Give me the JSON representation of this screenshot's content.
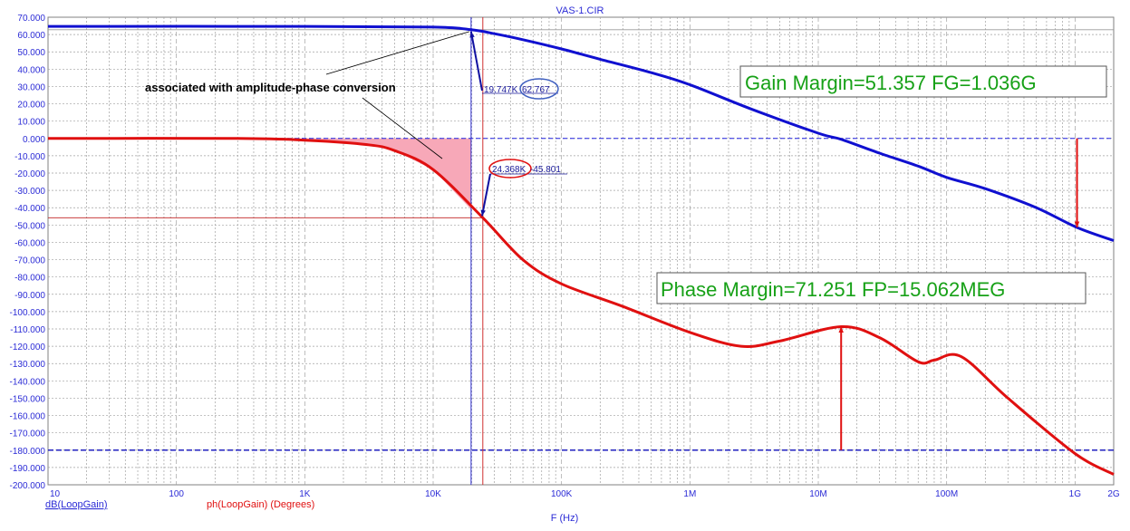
{
  "chart_data": {
    "type": "line",
    "title": "VAS-1.CIR",
    "xlabel": "F (Hz)",
    "x_scale": "log",
    "xlim": [
      10,
      2000000000
    ],
    "ylim": [
      -200,
      70
    ],
    "grid": true,
    "x_tick_labels": [
      "10",
      "100",
      "1K",
      "10K",
      "100K",
      "1M",
      "10M",
      "100M",
      "1G",
      "2G"
    ],
    "y_tick_labels": [
      "70.000",
      "60.000",
      "50.000",
      "40.000",
      "30.000",
      "20.000",
      "10.000",
      "0.000",
      "-10.000",
      "-20.000",
      "-30.000",
      "-40.000",
      "-50.000",
      "-60.000",
      "-70.000",
      "-80.000",
      "-90.000",
      "-100.000",
      "-110.000",
      "-120.000",
      "-130.000",
      "-140.000",
      "-150.000",
      "-160.000",
      "-170.000",
      "-180.000",
      "-190.000",
      "-200.000"
    ],
    "series": [
      {
        "name": "dB(LoopGain)",
        "color": "#1010d0",
        "x": [
          10,
          1000,
          10000,
          19747,
          30000,
          50000,
          100000,
          200000,
          500000,
          1000000,
          3000000,
          10000000,
          15000000,
          30000000,
          60000000,
          100000000,
          200000000,
          500000000,
          1036000000,
          2000000000
        ],
        "y": [
          64.7,
          64.7,
          64.3,
          62.8,
          60.5,
          57.0,
          51.7,
          45.7,
          38.0,
          31.0,
          17.0,
          3.0,
          -0.5,
          -8.5,
          -16.0,
          -22.5,
          -29.0,
          -40.0,
          -51.4,
          -59.0
        ]
      },
      {
        "name": "ph(LoopGain) (Degrees)",
        "color": "#e01010",
        "x": [
          10,
          300,
          1000,
          3000,
          5000,
          10000,
          24368,
          50000,
          100000,
          300000,
          1000000,
          2500000,
          5000000,
          15062000,
          30000000,
          60000000,
          80000000,
          130000000,
          300000000,
          1000000000,
          2000000000
        ],
        "y": [
          0.0,
          0.0,
          -1.0,
          -3.5,
          -7.0,
          -18.0,
          -45.8,
          -70.0,
          -84.0,
          -97.0,
          -112.0,
          -120.0,
          -117.0,
          -108.7,
          -115.0,
          -129.0,
          -128.0,
          -126.0,
          -150.0,
          -182.0,
          -194.0
        ]
      }
    ],
    "annotations": {
      "gain_margin": "Gain Margin=51.357 FG=1.036G",
      "phase_margin": "Phase Margin=71.251 FP=15.062MEG",
      "note": "associated with amplitude-phase conversion",
      "cursor_gain_freq": "19.747K",
      "cursor_gain_value": "62.767",
      "cursor_phase_freq": "24.368K",
      "cursor_phase_value": "-45.801"
    },
    "legend": {
      "gain_label": "dB(LoopGain)",
      "phase_label": "ph(LoopGain) (Degrees)"
    }
  }
}
